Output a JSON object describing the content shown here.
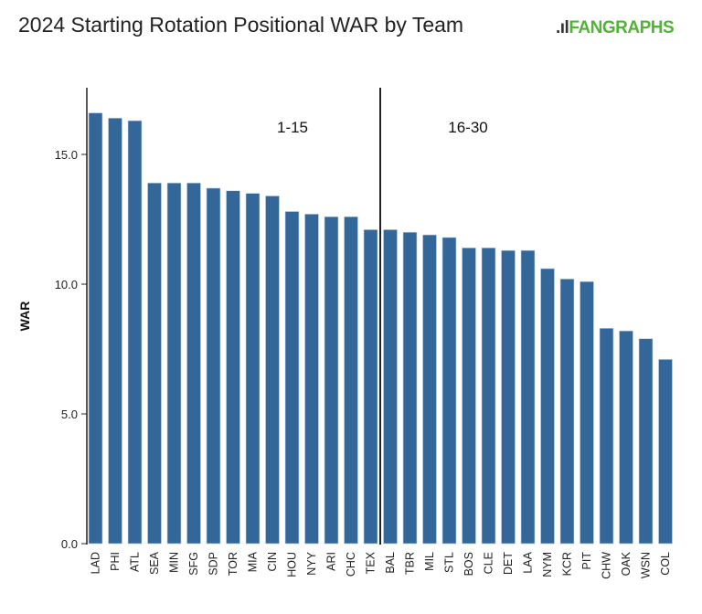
{
  "title": "2024 Starting Rotation Positional WAR by Team",
  "logo_text": "FANGRAPHS",
  "chart_data": {
    "type": "bar",
    "title": "2024 Starting Rotation Positional WAR by Team",
    "xlabel": "",
    "ylabel": "WAR",
    "ylim": [
      0,
      17.5
    ],
    "yticks": [
      "0.0",
      "5.0",
      "10.0",
      "15.0"
    ],
    "grid": false,
    "bar_color": "#336699",
    "categories": [
      "LAD",
      "PHI",
      "ATL",
      "SEA",
      "MIN",
      "SFG",
      "SDP",
      "TOR",
      "MIA",
      "CIN",
      "HOU",
      "NYY",
      "ARI",
      "CHC",
      "TEX",
      "BAL",
      "TBR",
      "MIL",
      "STL",
      "BOS",
      "CLE",
      "DET",
      "LAA",
      "NYM",
      "KCR",
      "PIT",
      "CHW",
      "OAK",
      "WSN",
      "COL"
    ],
    "values": [
      16.6,
      16.4,
      16.3,
      13.9,
      13.9,
      13.9,
      13.7,
      13.6,
      13.5,
      13.4,
      12.8,
      12.7,
      12.6,
      12.6,
      12.1,
      12.1,
      12.0,
      11.9,
      11.8,
      11.4,
      11.4,
      11.3,
      11.3,
      10.6,
      10.2,
      10.1,
      8.3,
      8.2,
      7.9,
      7.1
    ],
    "annotations": [
      {
        "text": "1-15",
        "group": "teams 1-15"
      },
      {
        "text": "16-30",
        "group": "teams 16-30"
      }
    ],
    "divider_after": "TEX"
  }
}
